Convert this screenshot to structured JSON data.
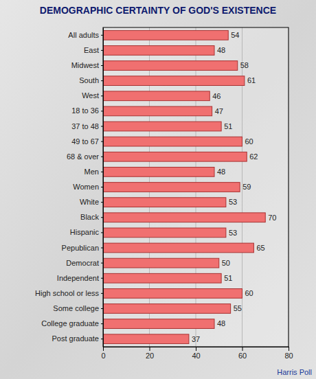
{
  "chart_data": {
    "type": "bar",
    "orientation": "horizontal",
    "title": "DEMOGRAPHIC CERTAINTY OF GOD'S EXISTENCE",
    "annotations": [
      "Harris Poll"
    ],
    "categories": [
      "All adults",
      "East",
      "Midwest",
      "South",
      "West",
      "18 to 36",
      "37 to 48",
      "49 to 67",
      "68 & over",
      "Men",
      "Women",
      "White",
      "Black",
      "Hispanic",
      "Pepublican",
      "Democrat",
      "Independent",
      "High school or less",
      "Some college",
      "College graduate",
      "Post graduate"
    ],
    "values": [
      54,
      48,
      58,
      61,
      46,
      47,
      51,
      60,
      62,
      48,
      59,
      53,
      70,
      53,
      65,
      50,
      51,
      60,
      55,
      48,
      37
    ],
    "color": "#f07070",
    "xlim": [
      0,
      80
    ],
    "xticks": [
      0,
      20,
      40,
      60,
      80
    ],
    "grid": true,
    "data_labels": true
  }
}
